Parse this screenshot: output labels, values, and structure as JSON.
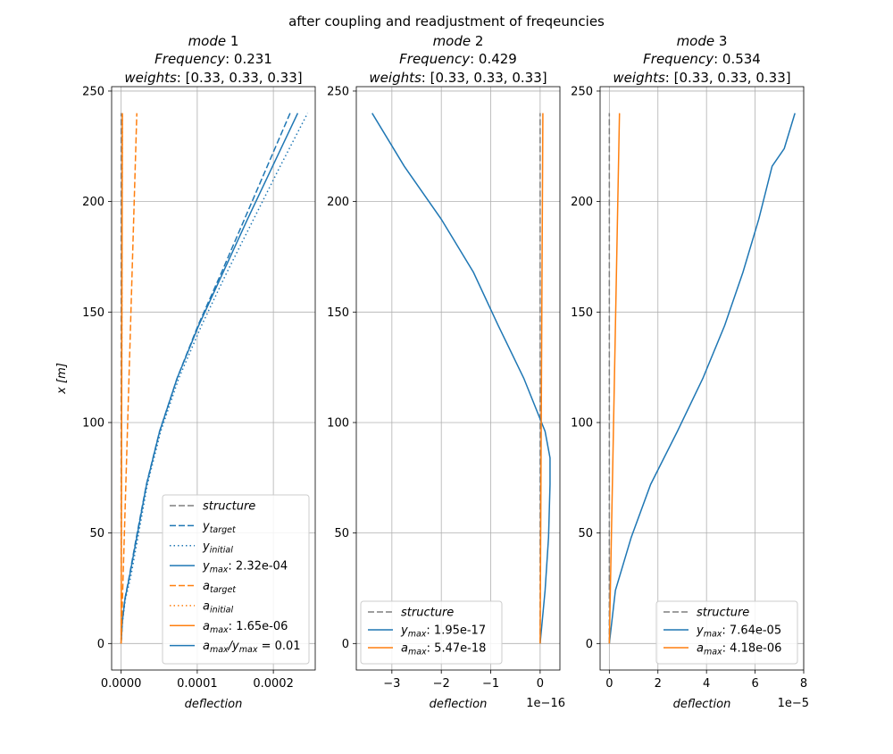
{
  "suptitle": "after coupling and readjustment of freqeuncies",
  "colors": {
    "blue": "#1f77b4",
    "orange": "#ff7f0e",
    "gray": "#7f7f7f",
    "grid": "#b0b0b0"
  },
  "chart_data": [
    {
      "type": "line",
      "title": [
        "mode 1",
        "Frequency: 0.231",
        "weights: [0.33, 0.33, 0.33]"
      ],
      "xlabel": "deflection",
      "ylabel": "x [m]",
      "xlim": [
        -1.25e-05,
        0.000255
      ],
      "ylim": [
        -12,
        252
      ],
      "xticks": [
        0,
        0.0001,
        0.0002
      ],
      "xtick_labels": [
        "0.0000",
        "0.0001",
        "0.0002"
      ],
      "yticks": [
        0,
        50,
        100,
        150,
        200,
        250
      ],
      "ytick_labels": [
        "0",
        "50",
        "100",
        "150",
        "200",
        "250"
      ],
      "offset_text": "",
      "legend_placement": "lower-right",
      "series": [
        {
          "name": "structure",
          "color": "gray",
          "dash": "dashed",
          "x": [
            0,
            0
          ],
          "y": [
            0,
            240
          ]
        },
        {
          "name": "y_target",
          "color": "blue",
          "dash": "dashed",
          "x": [
            0,
            1.5e-06,
            4.8e-06,
            1.05e-05,
            2e-05,
            3.32e-05,
            5.05e-05,
            7.35e-05,
            0.0001011,
            0.000132,
            0.000162,
            0.000192,
            0.000222
          ],
          "y": [
            0,
            10,
            20,
            30,
            48,
            72,
            96,
            120,
            144,
            168,
            192,
            216,
            240
          ]
        },
        {
          "name": "y_initial",
          "color": "blue",
          "dash": "dotted",
          "x": [
            0,
            1.8e-06,
            5.5e-06,
            1.25e-05,
            2.2e-05,
            3.45e-05,
            5.2e-05,
            7.57e-05,
            0.0001057,
            0.000139,
            0.000174,
            0.000209,
            0.000245
          ],
          "y": [
            0,
            10,
            20,
            30,
            48,
            72,
            96,
            120,
            144,
            168,
            192,
            216,
            240
          ]
        },
        {
          "name": "y_max",
          "value_text": "2.32e-04",
          "color": "blue",
          "dash": "solid",
          "x": [
            0,
            1.6e-06,
            5e-06,
            1.08e-05,
            2.05e-05,
            3.34e-05,
            5.06e-05,
            7.35e-05,
            0.000102,
            0.000134,
            0.000166,
            0.000199,
            0.000232
          ],
          "y": [
            0,
            10,
            20,
            30,
            48,
            72,
            96,
            120,
            144,
            168,
            192,
            216,
            240
          ]
        },
        {
          "name": "a_target",
          "color": "orange",
          "dash": "dashed",
          "x": [
            0,
            1.03e-05,
            2.06e-05
          ],
          "y": [
            0,
            120,
            240
          ]
        },
        {
          "name": "a_initial",
          "color": "orange",
          "dash": "dotted",
          "x": [
            0,
            8e-07,
            1.6e-06
          ],
          "y": [
            0,
            120,
            240
          ]
        },
        {
          "name": "a_max",
          "value_text": "1.65e-06",
          "color": "orange",
          "dash": "solid",
          "x": [
            0,
            8e-07,
            1.65e-06
          ],
          "y": [
            0,
            120,
            240
          ]
        }
      ],
      "legend": [
        {
          "kind": "text",
          "main": "structure",
          "color": "gray",
          "dash": "dashed"
        },
        {
          "kind": "sub",
          "main": "y",
          "sub": "target",
          "color": "blue",
          "dash": "dashed"
        },
        {
          "kind": "sub",
          "main": "y",
          "sub": "initial",
          "color": "blue",
          "dash": "dotted"
        },
        {
          "kind": "sub",
          "main": "y",
          "sub": "max",
          "value": ":  2.32e-04",
          "color": "blue",
          "dash": "solid"
        },
        {
          "kind": "sub",
          "main": "a",
          "sub": "target",
          "color": "orange",
          "dash": "dashed"
        },
        {
          "kind": "sub",
          "main": "a",
          "sub": "initial",
          "color": "orange",
          "dash": "dotted"
        },
        {
          "kind": "sub",
          "main": "a",
          "sub": "max",
          "value": ":  1.65e-06",
          "color": "orange",
          "dash": "solid"
        },
        {
          "kind": "ratio",
          "main": "a",
          "sub": "max",
          "main2": "y",
          "sub2": "max",
          "value": " = 0.01",
          "color": "blue",
          "dash": "solid"
        }
      ]
    },
    {
      "type": "line",
      "title": [
        "mode 2",
        "Frequency: 0.429",
        "weights: [0.33, 0.33, 0.33]"
      ],
      "xlabel": "deflection",
      "ylabel": "",
      "xlim": [
        -3.72,
        0.4
      ],
      "ylim": [
        -12,
        252
      ],
      "xticks": [
        -3,
        -2,
        -1,
        0
      ],
      "xtick_labels": [
        "−3",
        "−2",
        "−1",
        "0"
      ],
      "yticks": [
        0,
        50,
        100,
        150,
        200,
        250
      ],
      "ytick_labels": [
        "0",
        "50",
        "100",
        "150",
        "200",
        "250"
      ],
      "offset_text": "1e−16",
      "legend_placement": "lower-right",
      "series": [
        {
          "name": "structure",
          "color": "gray",
          "dash": "dashed",
          "x": [
            0,
            0
          ],
          "y": [
            0,
            240
          ]
        },
        {
          "name": "y_max",
          "value_text": "1.95e-17",
          "color": "blue",
          "dash": "solid",
          "x": [
            0,
            0.1,
            0.17,
            0.2,
            0.2,
            0.1,
            -0.33,
            -0.85,
            -1.35,
            -2.0,
            -2.75,
            -3.4
          ],
          "y": [
            0,
            24,
            48,
            72,
            84,
            96,
            120,
            144,
            168,
            192,
            216,
            240
          ]
        },
        {
          "name": "a_max",
          "value_text": "5.47e-18",
          "color": "orange",
          "dash": "solid",
          "x": [
            0,
            0.027,
            0.055
          ],
          "y": [
            0,
            120,
            240
          ]
        }
      ],
      "legend": [
        {
          "kind": "text",
          "main": "structure",
          "color": "gray",
          "dash": "dashed"
        },
        {
          "kind": "sub",
          "main": "y",
          "sub": "max",
          "value": ":  1.95e-17",
          "color": "blue",
          "dash": "solid"
        },
        {
          "kind": "sub",
          "main": "a",
          "sub": "max",
          "value": ":  5.47e-18",
          "color": "orange",
          "dash": "solid"
        }
      ]
    },
    {
      "type": "line",
      "title": [
        "mode 3",
        "Frequency: 0.534",
        "weights: [0.33, 0.33, 0.33]"
      ],
      "xlabel": "deflection",
      "ylabel": "",
      "xlim": [
        -0.38,
        8.0
      ],
      "ylim": [
        -12,
        252
      ],
      "xticks": [
        0,
        2,
        4,
        6,
        8
      ],
      "xtick_labels": [
        "0",
        "2",
        "4",
        "6",
        "8"
      ],
      "yticks": [
        0,
        50,
        100,
        150,
        200,
        250
      ],
      "ytick_labels": [
        "0",
        "50",
        "100",
        "150",
        "200",
        "250"
      ],
      "offset_text": "1e−5",
      "legend_placement": "lower-right",
      "series": [
        {
          "name": "structure",
          "color": "gray",
          "dash": "dashed",
          "x": [
            0,
            0
          ],
          "y": [
            0,
            240
          ]
        },
        {
          "name": "y_max",
          "value_text": "7.64e-05",
          "color": "blue",
          "dash": "solid",
          "x": [
            0,
            0.25,
            0.9,
            1.7,
            2.8,
            3.85,
            4.75,
            5.5,
            6.15,
            6.7,
            7.2,
            7.64
          ],
          "y": [
            0,
            24,
            48,
            72,
            96,
            120,
            144,
            168,
            192,
            216,
            224,
            240
          ]
        },
        {
          "name": "a_max",
          "value_text": "4.18e-06",
          "color": "orange",
          "dash": "solid",
          "x": [
            0,
            0.21,
            0.418
          ],
          "y": [
            0,
            120,
            240
          ]
        }
      ],
      "legend": [
        {
          "kind": "text",
          "main": "structure",
          "color": "gray",
          "dash": "dashed"
        },
        {
          "kind": "sub",
          "main": "y",
          "sub": "max",
          "value": ":  7.64e-05",
          "color": "blue",
          "dash": "solid"
        },
        {
          "kind": "sub",
          "main": "a",
          "sub": "max",
          "value": ":  4.18e-06",
          "color": "orange",
          "dash": "solid"
        }
      ]
    }
  ]
}
